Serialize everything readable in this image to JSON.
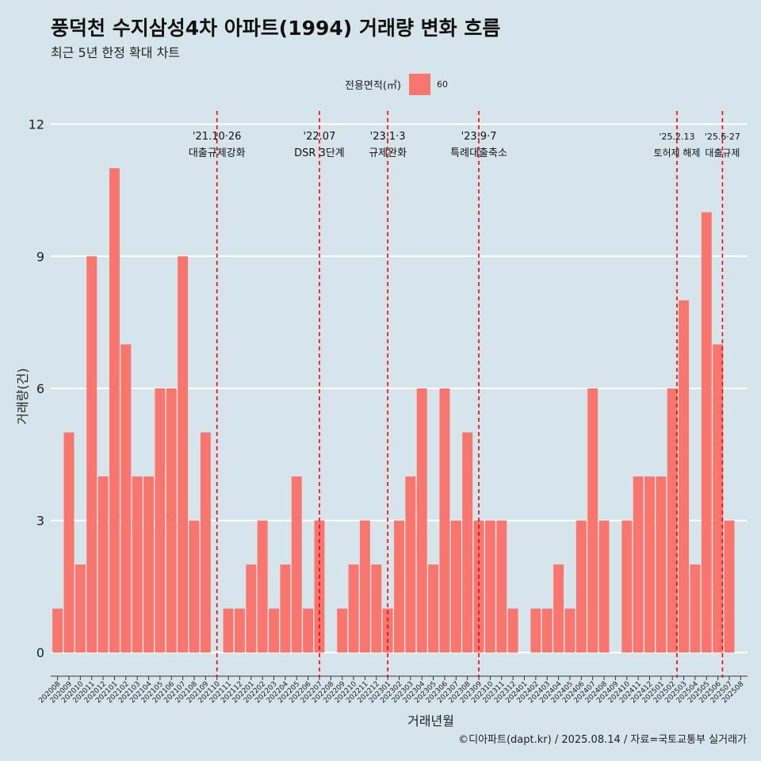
{
  "title": "풍덕천 수지삼성4차 아파트(1994) 거래량 변화 흐름",
  "subtitle": "최근 5년 한정 확대 차트",
  "caption": "©디아파트(dapt.kr) / 2025.08.14 / 자료=국토교통부 실거래가",
  "colors": {
    "background": "#d6e4ec",
    "bar": "#f8766d",
    "grid": "#ffffff",
    "event_line": "#ff0000"
  },
  "chart_data": {
    "type": "bar",
    "xlabel": "거래년월",
    "ylabel": "거래량(건)",
    "ylim": [
      -0.5,
      12.3
    ],
    "yticks": [
      0,
      3,
      6,
      9,
      12
    ],
    "legend": {
      "title": "전용면적(㎡)",
      "placement": "top",
      "entries": [
        "60"
      ]
    },
    "categories": [
      "202008",
      "202009",
      "202010",
      "202011",
      "202012",
      "202101",
      "202102",
      "202103",
      "202104",
      "202105",
      "202106",
      "202107",
      "202108",
      "202109",
      "202110",
      "202111",
      "202112",
      "202201",
      "202202",
      "202203",
      "202204",
      "202205",
      "202206",
      "202207",
      "202208",
      "202209",
      "202210",
      "202211",
      "202212",
      "202301",
      "202302",
      "202303",
      "202304",
      "202305",
      "202306",
      "202307",
      "202308",
      "202309",
      "202310",
      "202311",
      "202312",
      "202401",
      "202402",
      "202403",
      "202404",
      "202405",
      "202406",
      "202407",
      "202408",
      "202409",
      "202410",
      "202411",
      "202412",
      "202501",
      "202502",
      "202503",
      "202504",
      "202505",
      "202506",
      "202507",
      "202508"
    ],
    "series": [
      {
        "name": "60",
        "values": [
          1,
          5,
          2,
          9,
          4,
          11,
          7,
          4,
          4,
          6,
          6,
          9,
          3,
          5,
          0,
          1,
          1,
          2,
          3,
          1,
          2,
          4,
          1,
          3,
          0,
          1,
          2,
          3,
          2,
          1,
          3,
          4,
          6,
          2,
          6,
          3,
          5,
          3,
          3,
          3,
          1,
          0,
          1,
          1,
          2,
          1,
          3,
          6,
          3,
          0,
          3,
          4,
          4,
          4,
          6,
          8,
          2,
          10,
          7,
          3,
          0
        ]
      }
    ],
    "annotations": [
      {
        "x": 14.0,
        "date": "'21.10·26",
        "text": "대출규제강화"
      },
      {
        "x": 23.0,
        "date": "'22.07",
        "text": "DSR 3단계"
      },
      {
        "x": 29.0,
        "date": "'23.1·3",
        "text": "규제완화"
      },
      {
        "x": 37.0,
        "date": "'23.9·7",
        "text": "특례대출축소"
      },
      {
        "x": 54.4,
        "date": "'25.2.13",
        "text": "토허제 해제"
      },
      {
        "x": 58.4,
        "date": "'25.6·27",
        "text": "대출규제"
      }
    ]
  }
}
